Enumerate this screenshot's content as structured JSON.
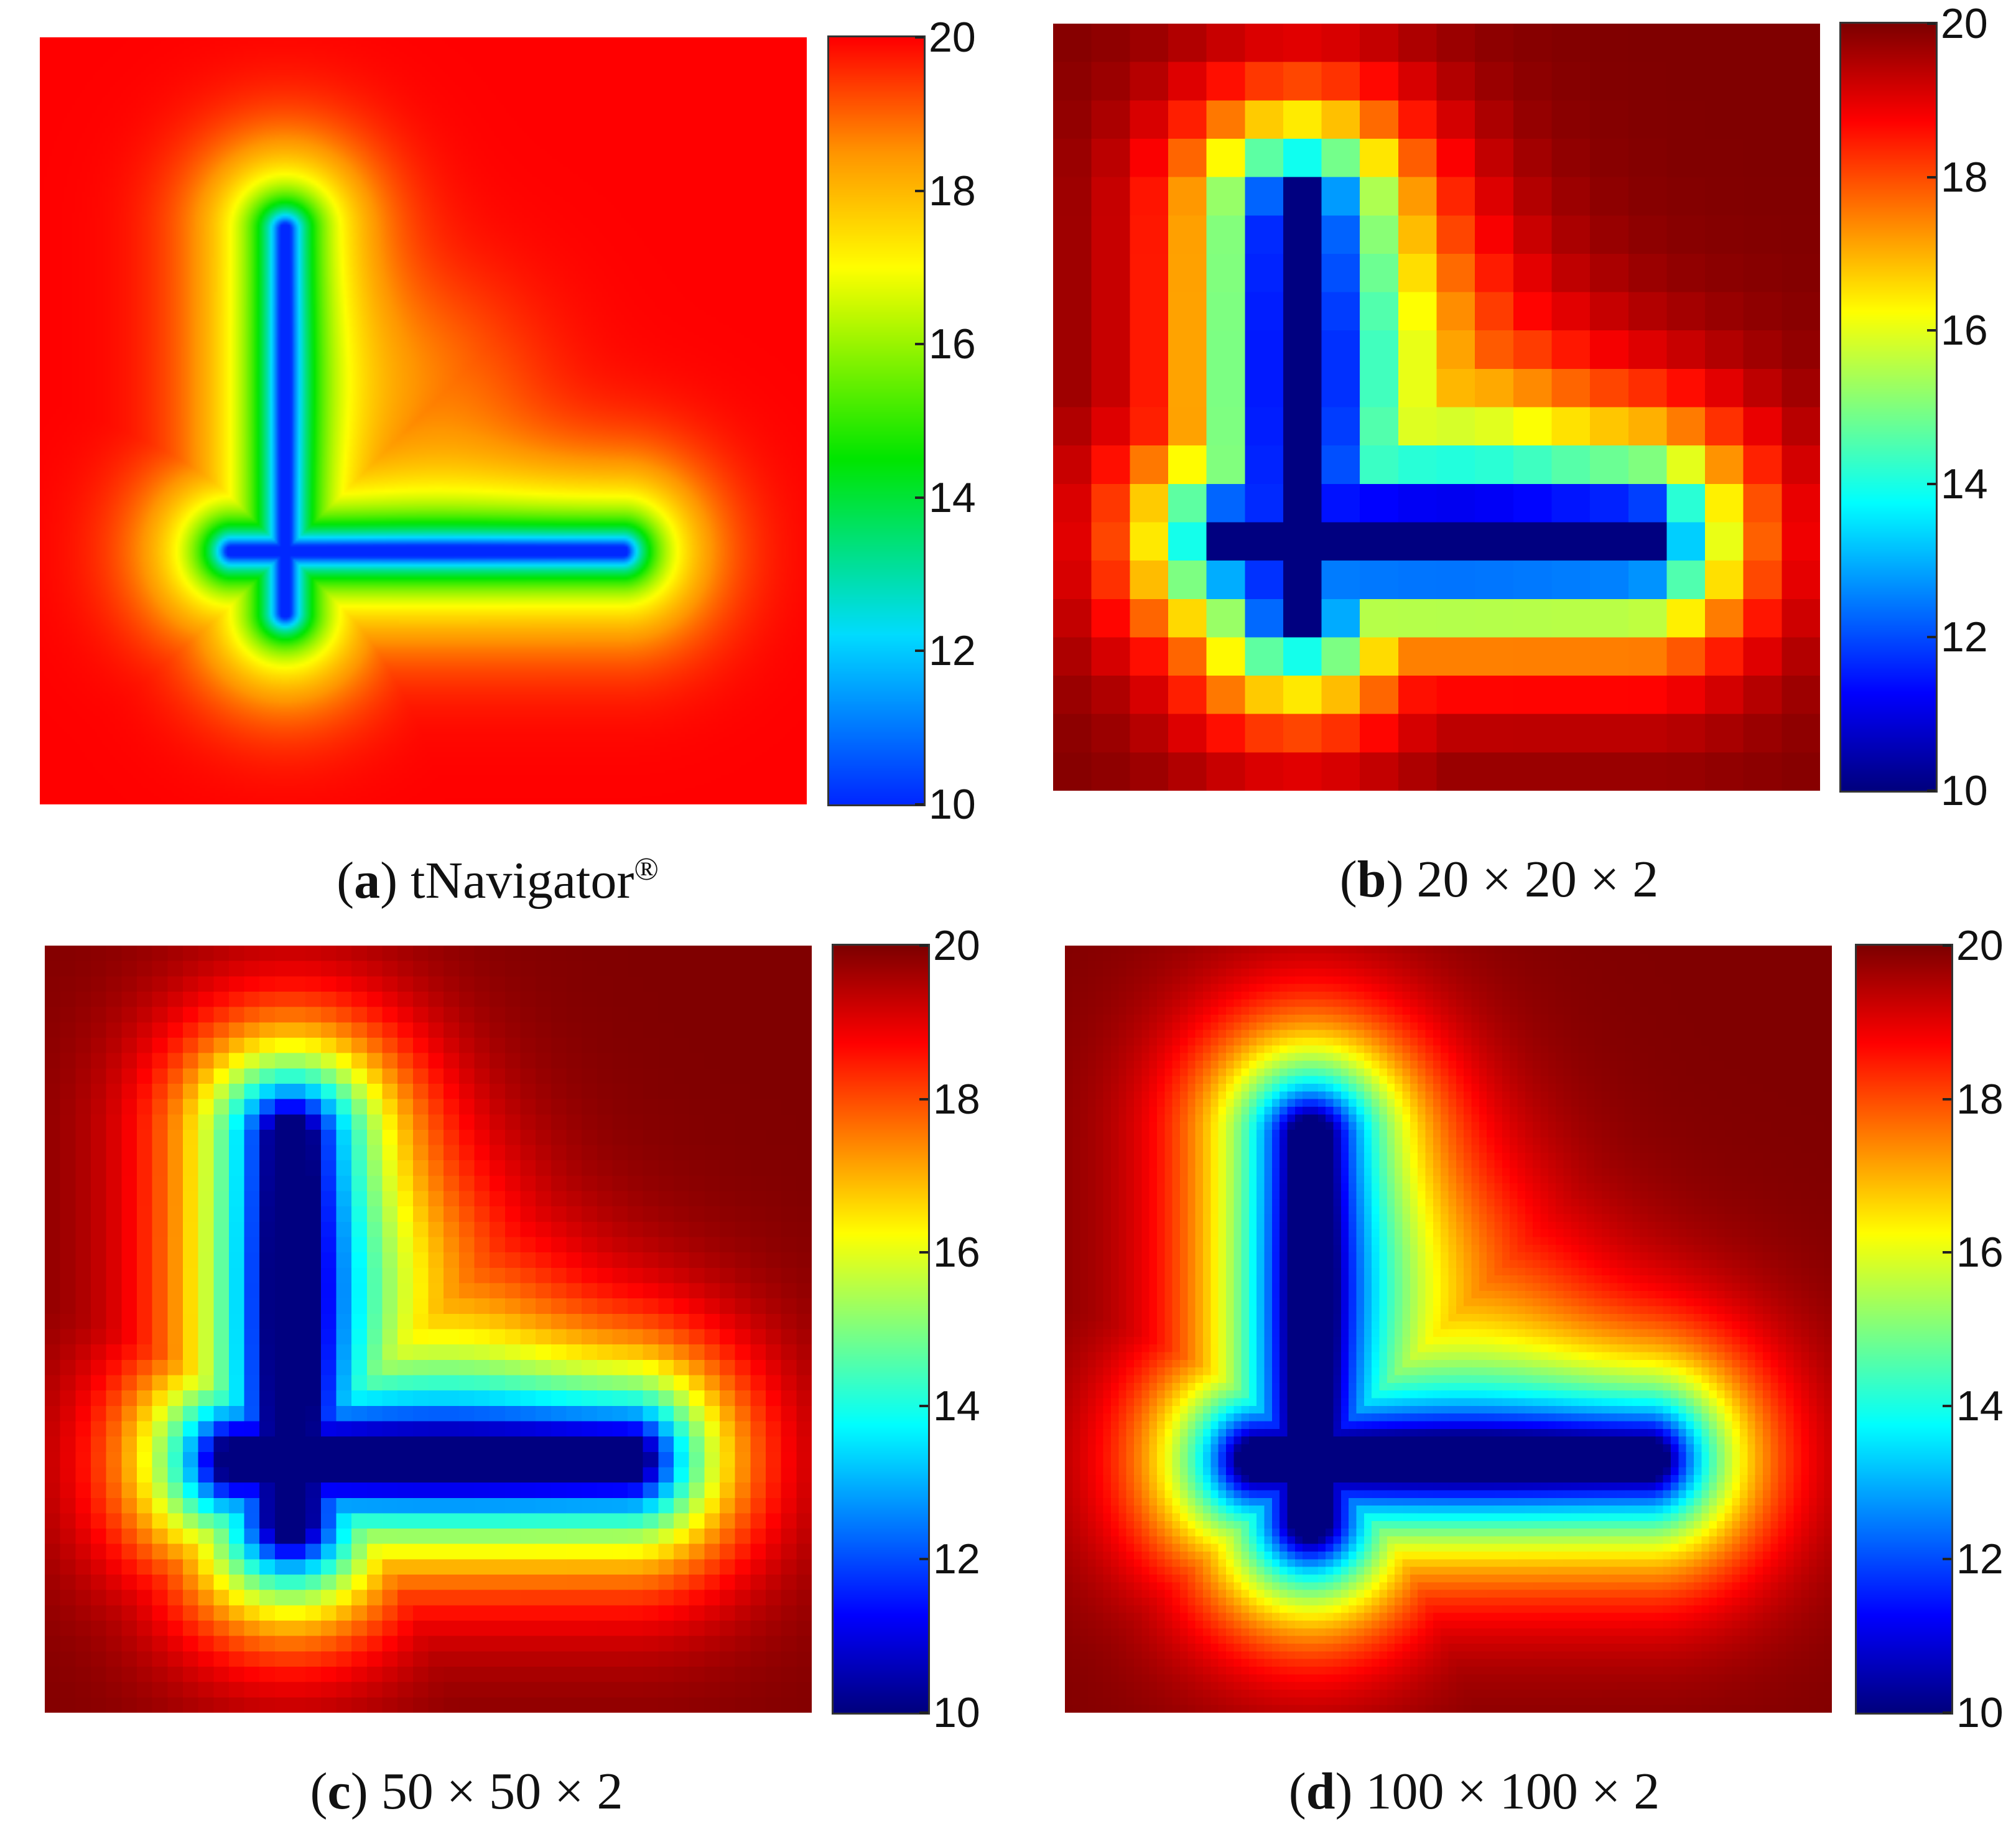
{
  "chart_data": [
    {
      "type": "heatmap",
      "panel": "a",
      "caption_letter": "a",
      "caption_text": "tNavigator",
      "caption_sup": "®",
      "colorbar": {
        "min": 10,
        "max": 20,
        "ticks": [
          "20",
          "18",
          "16",
          "14",
          "12",
          "10"
        ],
        "colormap": "hsv-like (blue-cyan-green-yellow-red)"
      },
      "grid": "smooth",
      "pattern": "L-shaped low-value well pattern (~10) surrounded by high values (~20)"
    },
    {
      "type": "heatmap",
      "panel": "b",
      "caption_letter": "b",
      "caption_text": "20 × 20 × 2",
      "colorbar": {
        "min": 10,
        "max": 20,
        "ticks": [
          "20",
          "18",
          "16",
          "14",
          "12",
          "10"
        ],
        "colormap": "jet"
      },
      "grid": "20x20",
      "pattern": "L-shaped low-value well pattern (~10) surrounded by high values (~20)"
    },
    {
      "type": "heatmap",
      "panel": "c",
      "caption_letter": "c",
      "caption_text": "50 × 50 × 2",
      "colorbar": {
        "min": 10,
        "max": 20,
        "ticks": [
          "20",
          "18",
          "16",
          "14",
          "12",
          "10"
        ],
        "colormap": "jet"
      },
      "grid": "50x50",
      "pattern": "L-shaped low-value well pattern (~10) surrounded by high values (~20)"
    },
    {
      "type": "heatmap",
      "panel": "d",
      "caption_letter": "d",
      "caption_text": "100 × 100 × 2",
      "colorbar": {
        "min": 10,
        "max": 20,
        "ticks": [
          "20",
          "18",
          "16",
          "14",
          "12",
          "10"
        ],
        "colormap": "jet"
      },
      "grid": "100x100",
      "pattern": "L-shaped low-value well pattern (~10) surrounded by high values (~20)"
    }
  ]
}
